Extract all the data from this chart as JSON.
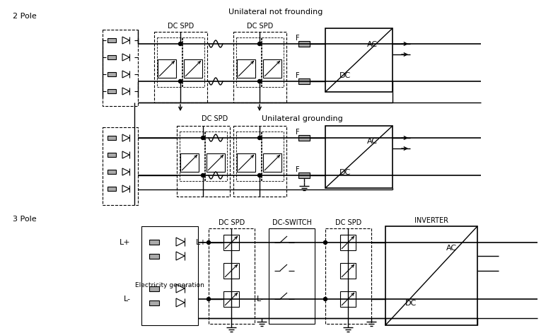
{
  "background_color": "#ffffff",
  "label_2pole": "2 Pole",
  "label_3pole": "3 Pole",
  "label_unilateral_not": "Unilateral not frounding",
  "label_unilateral_ground": "Unilateral grounding",
  "label_dc_spd": "DC SPD",
  "label_dc_switch": "DC-SWITCH",
  "label_inverter": "INVERTER",
  "label_ac": "AC",
  "label_dc": "DC",
  "label_lplus": "L+",
  "label_lminus": "L-",
  "label_elec_gen": "Electricity generation",
  "label_f": "F"
}
